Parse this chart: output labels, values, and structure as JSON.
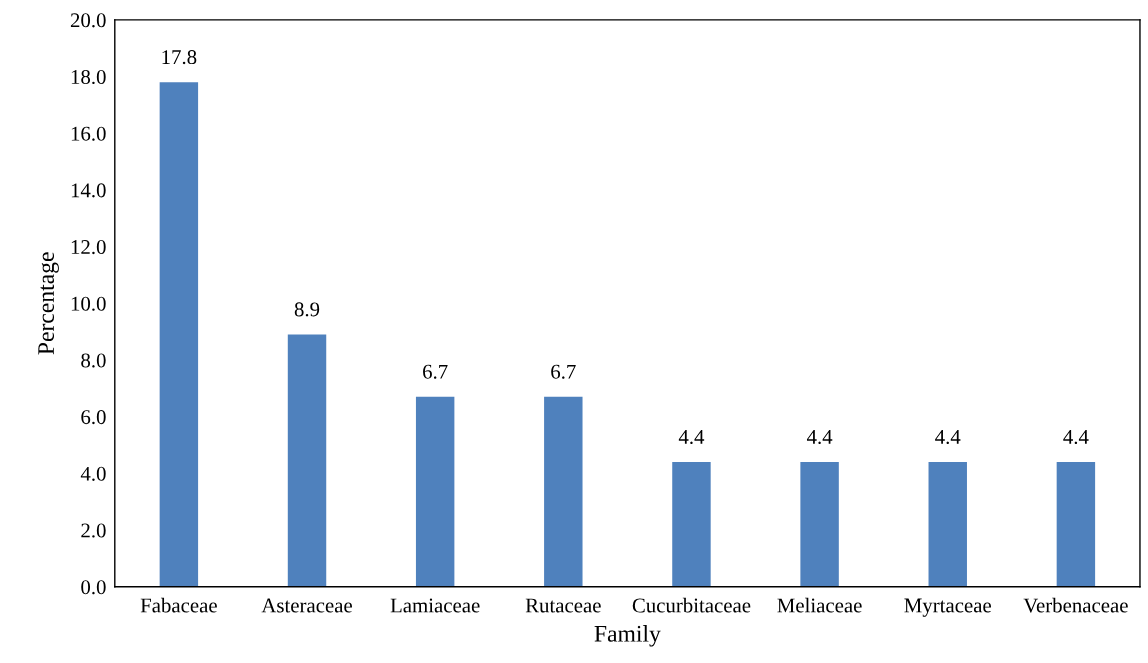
{
  "chart_data": {
    "type": "bar",
    "xlabel": "Family",
    "ylabel": "Percentage",
    "categories": [
      "Fabaceae",
      "Asteraceae",
      "Lamiaceae",
      "Rutaceae",
      "Cucurbitaceae",
      "Meliaceae",
      "Myrtaceae",
      "Verbenaceae"
    ],
    "values": [
      17.8,
      8.9,
      6.7,
      6.7,
      4.4,
      4.4,
      4.4,
      4.4
    ],
    "color": "#4f81bd",
    "data_labels": true,
    "grid": false,
    "legend": false,
    "ylim": [
      0,
      20
    ],
    "yticks": [
      {
        "value": 0,
        "label": "0.0"
      },
      {
        "value": 2,
        "label": "2.0"
      },
      {
        "value": 4,
        "label": "4.0"
      },
      {
        "value": 6,
        "label": "6.0"
      },
      {
        "value": 8,
        "label": "8.0"
      },
      {
        "value": 10,
        "label": "10.0"
      },
      {
        "value": 12,
        "label": "12.0"
      },
      {
        "value": 14,
        "label": "14.0"
      },
      {
        "value": 16,
        "label": "16.0"
      },
      {
        "value": 18,
        "label": "18.0"
      },
      {
        "value": 20,
        "label": "20.0"
      }
    ]
  }
}
